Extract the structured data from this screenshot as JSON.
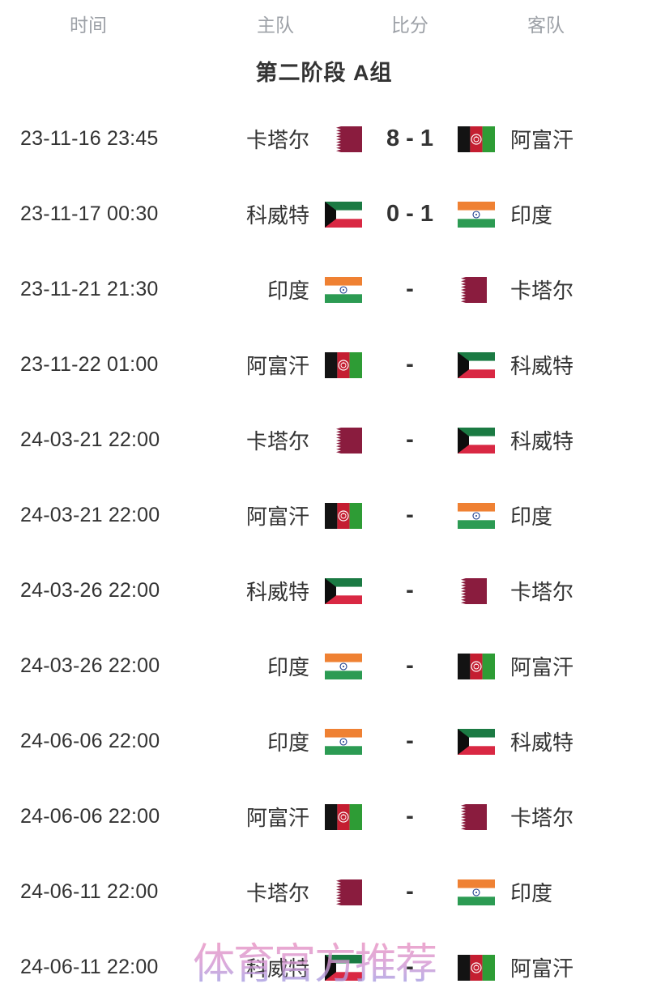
{
  "table_header": {
    "time": "时间",
    "home": "主队",
    "score": "比分",
    "away": "客队"
  },
  "group_title": "第二阶段 A组",
  "watermark_text": "体育官方推荐",
  "colors": {
    "header_text": "#9da1a7",
    "body_text": "#333333",
    "watermark_top": "#f48fb8",
    "watermark_bottom": "#92a0e8",
    "qatar_maroon": "#8a1c3e",
    "kuwait_green": "#1b7a43",
    "kuwait_red": "#d92843",
    "kuwait_black": "#0d0d0d",
    "india_saffron": "#ef8133",
    "india_white": "#ffffff",
    "india_green": "#2c9b53",
    "india_navy": "#1a3b8b",
    "afghan_black": "#131313",
    "afghan_red": "#c41e31",
    "afghan_green": "#2e9c35"
  },
  "matches": [
    {
      "time": "23-11-16 23:45",
      "home": "卡塔尔",
      "home_flag": "QAT",
      "score": "8 - 1",
      "away": "阿富汗",
      "away_flag": "AFG"
    },
    {
      "time": "23-11-17 00:30",
      "home": "科威特",
      "home_flag": "KWT",
      "score": "0 - 1",
      "away": "印度",
      "away_flag": "IND"
    },
    {
      "time": "23-11-21 21:30",
      "home": "印度",
      "home_flag": "IND",
      "score": "-",
      "away": "卡塔尔",
      "away_flag": "QAT"
    },
    {
      "time": "23-11-22 01:00",
      "home": "阿富汗",
      "home_flag": "AFG",
      "score": "-",
      "away": "科威特",
      "away_flag": "KWT"
    },
    {
      "time": "24-03-21 22:00",
      "home": "卡塔尔",
      "home_flag": "QAT",
      "score": "-",
      "away": "科威特",
      "away_flag": "KWT"
    },
    {
      "time": "24-03-21 22:00",
      "home": "阿富汗",
      "home_flag": "AFG",
      "score": "-",
      "away": "印度",
      "away_flag": "IND"
    },
    {
      "time": "24-03-26 22:00",
      "home": "科威特",
      "home_flag": "KWT",
      "score": "-",
      "away": "卡塔尔",
      "away_flag": "QAT"
    },
    {
      "time": "24-03-26 22:00",
      "home": "印度",
      "home_flag": "IND",
      "score": "-",
      "away": "阿富汗",
      "away_flag": "AFG"
    },
    {
      "time": "24-06-06 22:00",
      "home": "印度",
      "home_flag": "IND",
      "score": "-",
      "away": "科威特",
      "away_flag": "KWT"
    },
    {
      "time": "24-06-06 22:00",
      "home": "阿富汗",
      "home_flag": "AFG",
      "score": "-",
      "away": "卡塔尔",
      "away_flag": "QAT"
    },
    {
      "time": "24-06-11 22:00",
      "home": "卡塔尔",
      "home_flag": "QAT",
      "score": "-",
      "away": "印度",
      "away_flag": "IND"
    },
    {
      "time": "24-06-11 22:00",
      "home": "科威特",
      "home_flag": "KWT",
      "score": "-",
      "away": "阿富汗",
      "away_flag": "AFG"
    }
  ]
}
